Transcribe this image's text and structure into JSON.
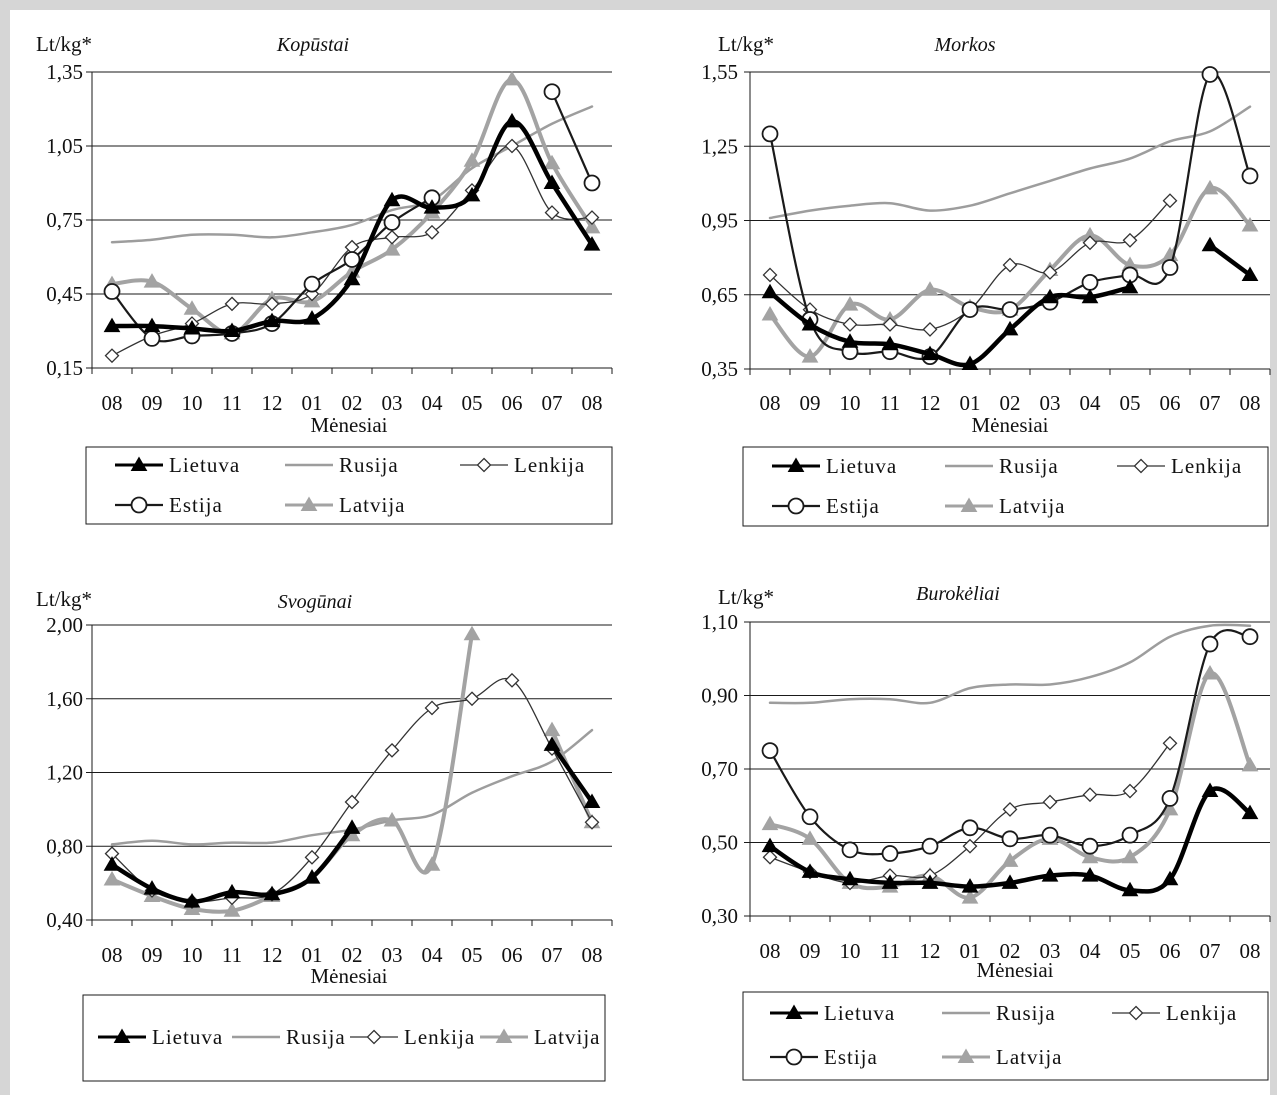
{
  "chart_data": [
    {
      "type": "line",
      "title": "Kopūstai",
      "ylabel": "Lt/kg*",
      "xlabel": "Mėnesiai",
      "categories": [
        "08",
        "09",
        "10",
        "11",
        "12",
        "01",
        "02",
        "03",
        "04",
        "05",
        "06",
        "07",
        "08"
      ],
      "yticks": [
        "0,15",
        "0,45",
        "0,75",
        "1,05",
        "1,35"
      ],
      "ylim": [
        0.15,
        1.35
      ],
      "grid": true,
      "legend": "bottom",
      "series": [
        {
          "name": "Lietuva",
          "color": "#000000",
          "marker": "triangle",
          "values": [
            0.32,
            0.32,
            0.31,
            0.3,
            0.34,
            0.35,
            0.51,
            0.83,
            0.8,
            0.85,
            1.15,
            0.9,
            0.65
          ]
        },
        {
          "name": "Rusija",
          "color": "#9d9d9d",
          "marker": "none",
          "values": [
            0.66,
            0.67,
            0.69,
            0.69,
            0.68,
            0.7,
            0.73,
            0.79,
            0.83,
            0.96,
            1.05,
            1.14,
            1.21
          ]
        },
        {
          "name": "Lenkija",
          "color": "#333333",
          "marker": "diamond",
          "values": [
            0.2,
            0.28,
            0.33,
            0.41,
            0.41,
            0.45,
            0.64,
            0.68,
            0.7,
            0.87,
            1.05,
            0.78,
            0.76
          ]
        },
        {
          "name": "Estija",
          "color": "#1a1a1a",
          "marker": "circle",
          "values": [
            0.46,
            0.27,
            0.28,
            0.29,
            0.33,
            0.49,
            0.59,
            0.74,
            0.84,
            null,
            null,
            1.27,
            0.9
          ]
        },
        {
          "name": "Latvija",
          "color": "#a3a3a3",
          "marker": "triangle",
          "values": [
            0.49,
            0.5,
            0.39,
            0.29,
            0.43,
            0.42,
            0.54,
            0.63,
            0.78,
            0.99,
            1.32,
            0.98,
            0.72
          ]
        }
      ]
    },
    {
      "type": "line",
      "title": "Morkos",
      "ylabel": "Lt/kg*",
      "xlabel": "Mėnesiai",
      "categories": [
        "08",
        "09",
        "10",
        "11",
        "12",
        "01",
        "02",
        "03",
        "04",
        "05",
        "06",
        "07",
        "08"
      ],
      "yticks": [
        "0,35",
        "0,65",
        "0,95",
        "1,25",
        "1,55"
      ],
      "ylim": [
        0.35,
        1.55
      ],
      "grid": true,
      "legend": "bottom",
      "series": [
        {
          "name": "Lietuva",
          "color": "#000000",
          "marker": "triangle",
          "values": [
            0.66,
            0.53,
            0.46,
            0.45,
            0.41,
            0.37,
            0.51,
            0.64,
            0.64,
            0.68,
            null,
            0.85,
            0.73
          ]
        },
        {
          "name": "Rusija",
          "color": "#9d9d9d",
          "marker": "none",
          "values": [
            0.96,
            0.99,
            1.01,
            1.02,
            0.99,
            1.01,
            1.06,
            1.11,
            1.16,
            1.2,
            1.27,
            1.31,
            1.41
          ]
        },
        {
          "name": "Lenkija",
          "color": "#333333",
          "marker": "diamond",
          "values": [
            0.73,
            0.59,
            0.53,
            0.53,
            0.51,
            0.59,
            0.77,
            0.74,
            0.86,
            0.87,
            1.03,
            null,
            null
          ]
        },
        {
          "name": "Estija",
          "color": "#1a1a1a",
          "marker": "circle",
          "values": [
            1.3,
            0.55,
            0.42,
            0.42,
            0.4,
            0.59,
            0.59,
            0.62,
            0.7,
            0.73,
            0.76,
            1.54,
            1.13
          ]
        },
        {
          "name": "Latvija",
          "color": "#a3a3a3",
          "marker": "triangle",
          "values": [
            0.57,
            0.4,
            0.61,
            0.55,
            0.67,
            0.6,
            0.59,
            0.75,
            0.89,
            0.77,
            0.81,
            1.08,
            0.93
          ]
        }
      ]
    },
    {
      "type": "line",
      "title": "Svogūnai",
      "ylabel": "Lt/kg*",
      "xlabel": "Mėnesiai",
      "categories": [
        "08",
        "09",
        "10",
        "11",
        "12",
        "01",
        "02",
        "03",
        "04",
        "05",
        "06",
        "07",
        "08"
      ],
      "yticks": [
        "0,40",
        "0,80",
        "1,20",
        "1,60",
        "2,00"
      ],
      "ylim": [
        0.4,
        2.0
      ],
      "grid": true,
      "legend": "bottom",
      "series": [
        {
          "name": "Lietuva",
          "color": "#000000",
          "marker": "triangle",
          "values": [
            0.7,
            0.57,
            0.5,
            0.55,
            0.54,
            0.63,
            0.9,
            null,
            null,
            null,
            null,
            1.35,
            1.04
          ]
        },
        {
          "name": "Rusija",
          "color": "#9d9d9d",
          "marker": "none",
          "values": [
            0.81,
            0.83,
            0.81,
            0.82,
            0.82,
            0.86,
            0.89,
            0.94,
            0.97,
            1.09,
            1.18,
            1.26,
            1.43
          ]
        },
        {
          "name": "Lenkija",
          "color": "#333333",
          "marker": "diamond",
          "values": [
            0.76,
            0.56,
            0.5,
            0.52,
            0.54,
            0.74,
            1.04,
            1.32,
            1.55,
            1.6,
            1.7,
            1.33,
            0.93
          ]
        },
        {
          "name": "Latvija",
          "color": "#a3a3a3",
          "marker": "triangle",
          "values": [
            0.62,
            0.53,
            0.46,
            0.45,
            0.53,
            0.63,
            0.86,
            0.94,
            0.7,
            1.95,
            null,
            1.43,
            0.93
          ]
        }
      ]
    },
    {
      "type": "line",
      "title": "Burokėliai",
      "ylabel": "Lt/kg*",
      "xlabel": "Mėnesiai",
      "categories": [
        "08",
        "09",
        "10",
        "11",
        "12",
        "01",
        "02",
        "03",
        "04",
        "05",
        "06",
        "07",
        "08"
      ],
      "yticks": [
        "0,30",
        "0,50",
        "0,70",
        "0,90",
        "1,10"
      ],
      "ylim": [
        0.3,
        1.1
      ],
      "grid": true,
      "legend": "bottom",
      "series": [
        {
          "name": "Lietuva",
          "color": "#000000",
          "marker": "triangle",
          "values": [
            0.49,
            0.42,
            0.4,
            0.39,
            0.39,
            0.38,
            0.39,
            0.41,
            0.41,
            0.37,
            0.4,
            0.64,
            0.58
          ]
        },
        {
          "name": "Rusija",
          "color": "#9d9d9d",
          "marker": "none",
          "values": [
            0.88,
            0.88,
            0.89,
            0.89,
            0.88,
            0.92,
            0.93,
            0.93,
            0.95,
            0.99,
            1.06,
            1.09,
            1.09
          ]
        },
        {
          "name": "Lenkija",
          "color": "#333333",
          "marker": "diamond",
          "values": [
            0.46,
            0.42,
            0.39,
            0.41,
            0.41,
            0.49,
            0.59,
            0.61,
            0.63,
            0.64,
            0.77,
            null,
            null
          ]
        },
        {
          "name": "Estija",
          "color": "#1a1a1a",
          "marker": "circle",
          "values": [
            0.75,
            0.57,
            0.48,
            0.47,
            0.49,
            0.54,
            0.51,
            0.52,
            0.49,
            0.52,
            0.62,
            1.04,
            1.06
          ]
        },
        {
          "name": "Latvija",
          "color": "#a3a3a3",
          "marker": "triangle",
          "values": [
            0.55,
            0.51,
            0.39,
            0.38,
            0.41,
            0.35,
            0.45,
            0.51,
            0.46,
            0.46,
            0.59,
            0.96,
            0.71
          ]
        }
      ]
    }
  ]
}
